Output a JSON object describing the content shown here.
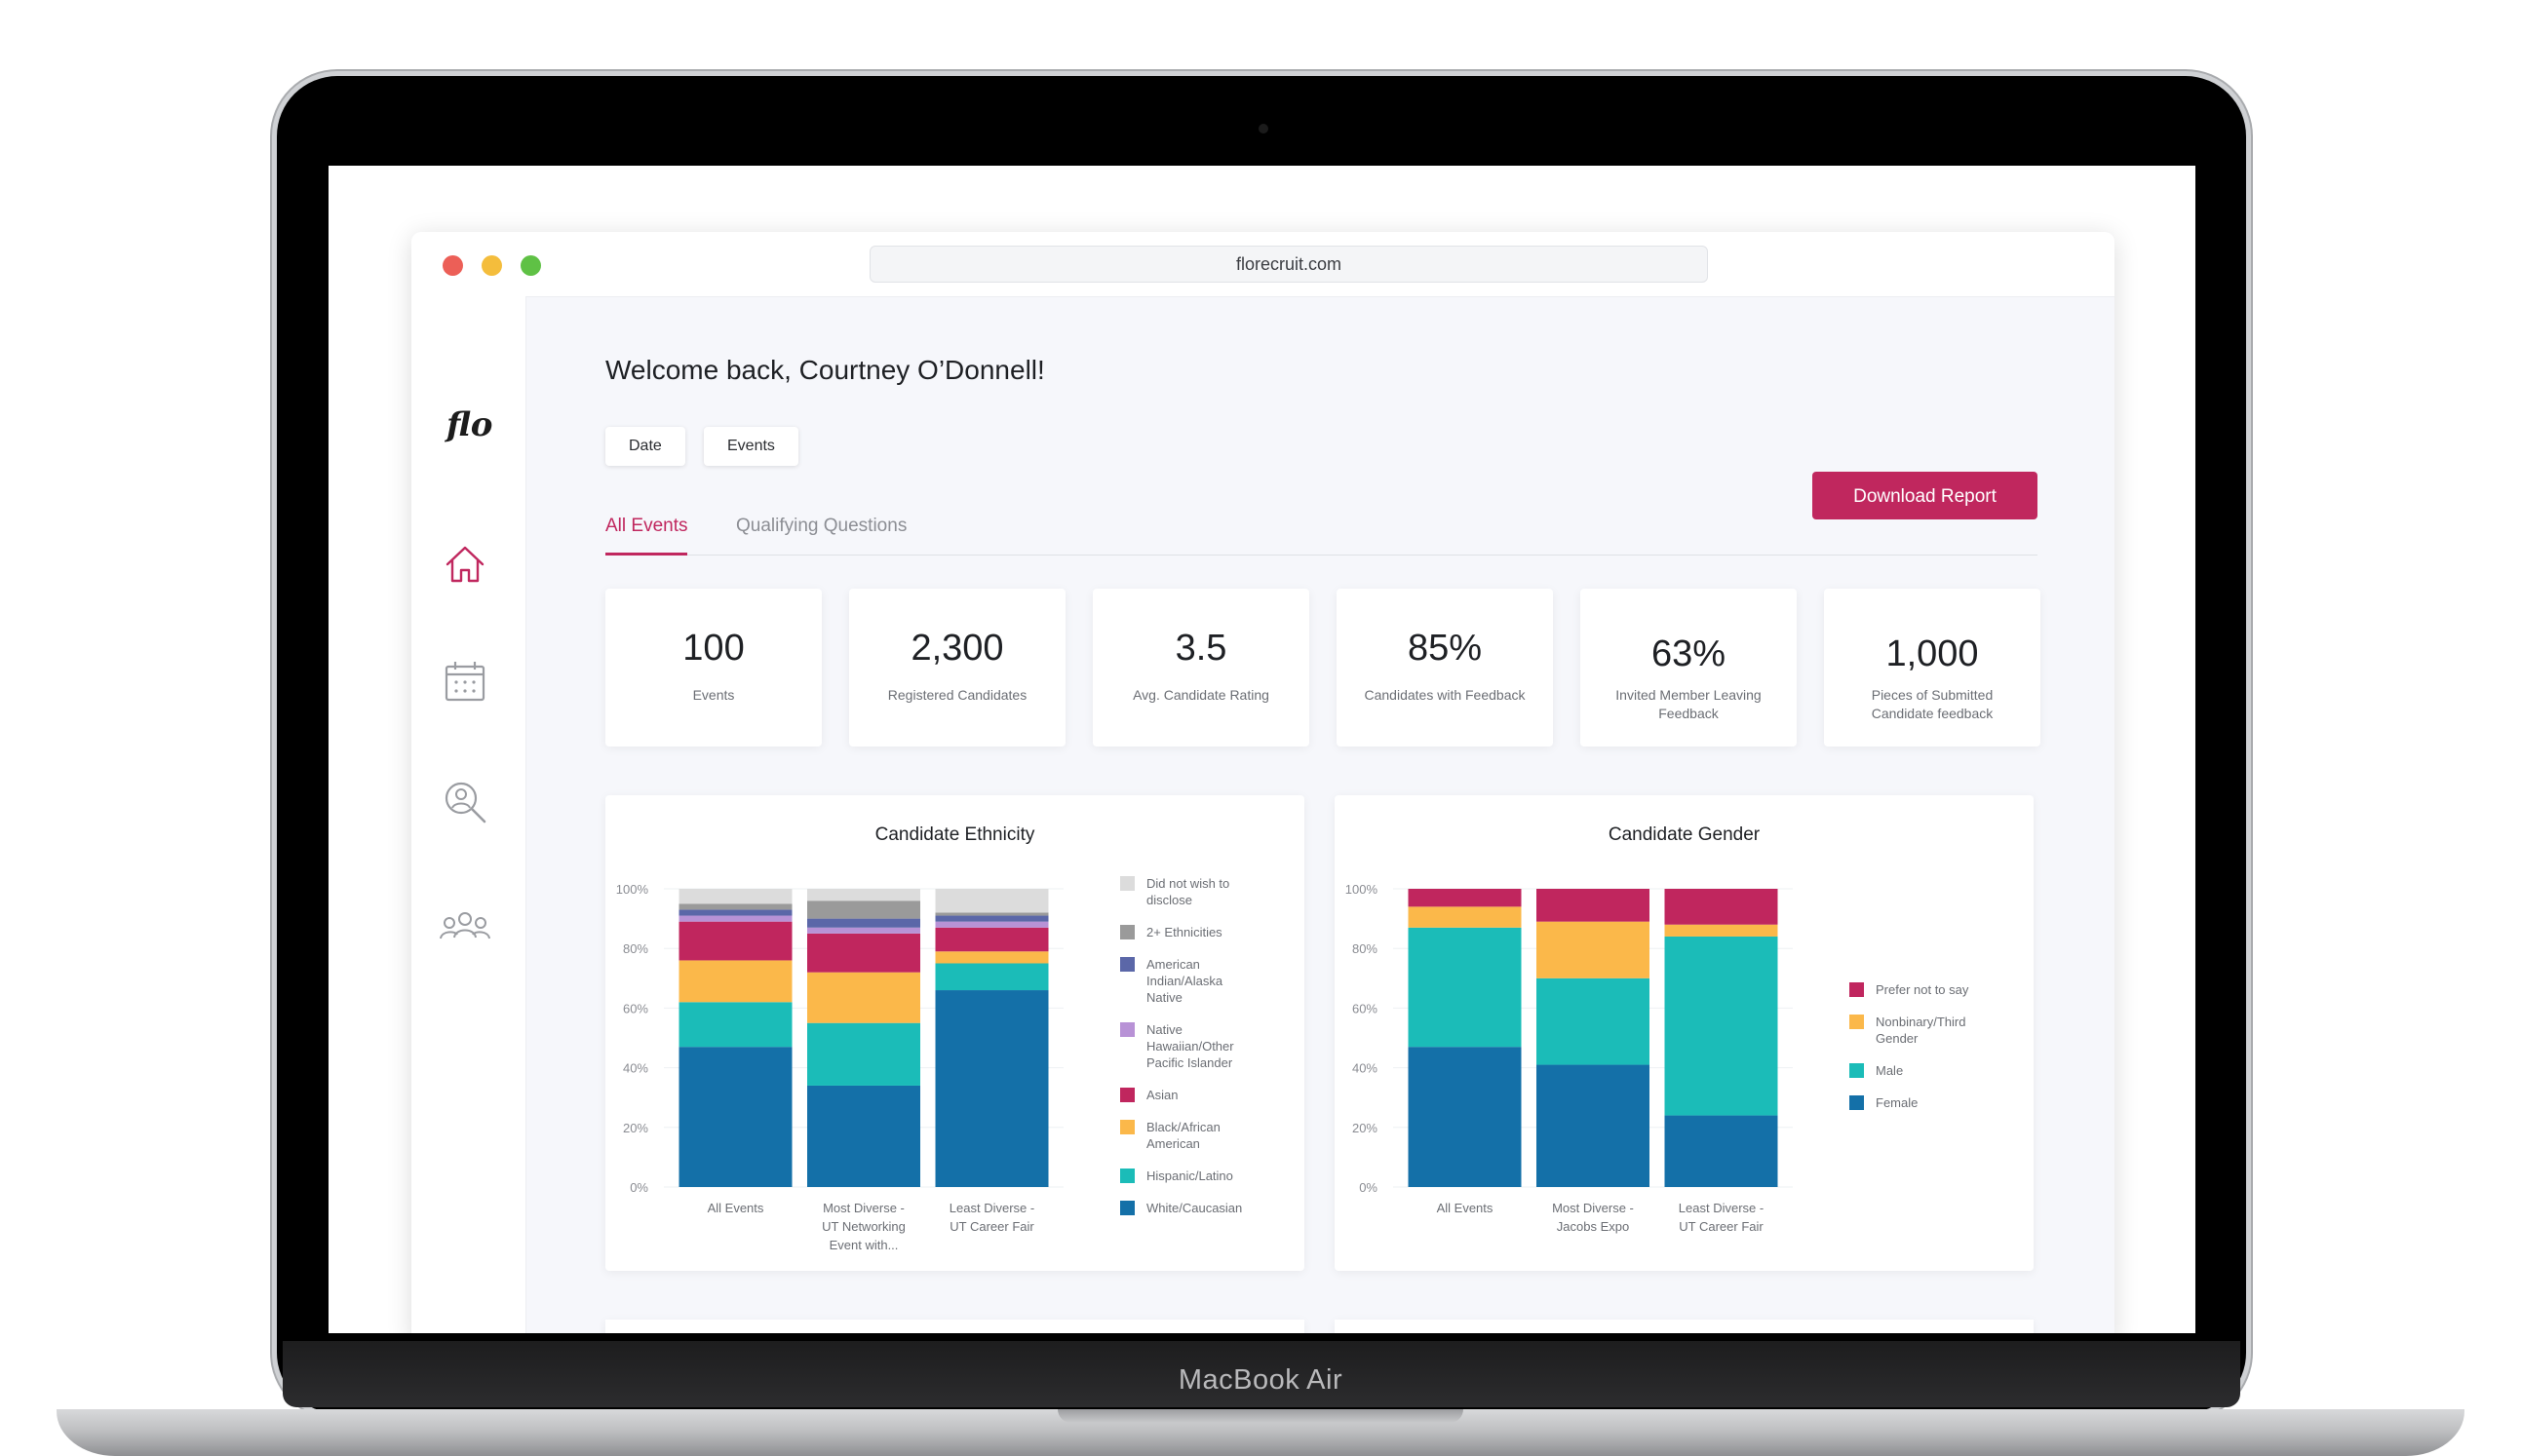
{
  "device": {
    "label": "MacBook Air"
  },
  "browser": {
    "url": "florecruit.com"
  },
  "sidebar": {
    "logo": "flo",
    "items": [
      {
        "icon": "home-icon",
        "active": true
      },
      {
        "icon": "calendar-icon",
        "active": false
      },
      {
        "icon": "candidate-search-icon",
        "active": false
      },
      {
        "icon": "team-icon",
        "active": false
      }
    ]
  },
  "header": {
    "welcome": "Welcome back, Courtney O’Donnell!",
    "filters": {
      "date": "Date",
      "events": "Events"
    },
    "download_label": "Download Report"
  },
  "tabs": [
    {
      "label": "All Events",
      "active": true
    },
    {
      "label": "Qualifying Questions",
      "active": false
    }
  ],
  "stats": [
    {
      "value": "100",
      "label": "Events"
    },
    {
      "value": "2,300",
      "label": "Registered Candidates"
    },
    {
      "value": "3.5",
      "label": "Avg. Candidate Rating"
    },
    {
      "value": "85%",
      "label": "Candidates with Feedback"
    },
    {
      "value": "63%",
      "label": "Invited Member Leaving Feedback"
    },
    {
      "value": "1,000",
      "label": "Pieces of Submitted Candidate feedback"
    }
  ],
  "colors": {
    "accent": "#c0275e",
    "did_not_wish": "#dcdcdc",
    "two_plus": "#9a9a9a",
    "american_indian": "#5b67a8",
    "pacific_islander": "#b892d6",
    "asian": "#c0265e",
    "black": "#fbb84a",
    "hispanic": "#1bbcb8",
    "white": "#1470a8"
  },
  "chart_data": [
    {
      "type": "bar",
      "stacked": true,
      "title": "Candidate Ethnicity",
      "categories": [
        "All Events",
        "Most Diverse - UT Networking Event with...",
        "Least Diverse - UT Career Fair"
      ],
      "ylim": [
        0,
        100
      ],
      "y_ticks": [
        "0%",
        "20%",
        "40%",
        "60%",
        "80%",
        "100%"
      ],
      "legend_position": "right",
      "series": [
        {
          "name": "White/Caucasian",
          "color": "#1470a8",
          "values": [
            47,
            34,
            66
          ]
        },
        {
          "name": "Hispanic/Latino",
          "color": "#1bbcb8",
          "values": [
            15,
            21,
            9
          ]
        },
        {
          "name": "Black/African American",
          "color": "#fbb84a",
          "values": [
            14,
            17,
            4
          ]
        },
        {
          "name": "Asian",
          "color": "#c0265e",
          "values": [
            13,
            13,
            8
          ]
        },
        {
          "name": "Native Hawaiian/Other Pacific Islander",
          "color": "#b892d6",
          "values": [
            2,
            2,
            2
          ]
        },
        {
          "name": "American Indian/Alaska Native",
          "color": "#5b67a8",
          "values": [
            2,
            3,
            2
          ]
        },
        {
          "name": "2+ Ethnicities",
          "color": "#9a9a9a",
          "values": [
            2,
            6,
            1
          ]
        },
        {
          "name": "Did not wish to disclose",
          "color": "#dcdcdc",
          "values": [
            5,
            4,
            8
          ]
        }
      ]
    },
    {
      "type": "bar",
      "stacked": true,
      "title": "Candidate Gender",
      "categories": [
        "All Events",
        "Most Diverse - Jacobs Expo",
        "Least Diverse - UT Career Fair"
      ],
      "ylim": [
        0,
        100
      ],
      "y_ticks": [
        "0%",
        "20%",
        "40%",
        "60%",
        "80%",
        "100%"
      ],
      "legend_position": "right",
      "series": [
        {
          "name": "Female",
          "color": "#1470a8",
          "values": [
            47,
            41,
            24
          ]
        },
        {
          "name": "Male",
          "color": "#1bbcb8",
          "values": [
            40,
            29,
            60
          ]
        },
        {
          "name": "Nonbinary/Third Gender",
          "color": "#fbb84a",
          "values": [
            7,
            19,
            4
          ]
        },
        {
          "name": "Prefer not to say",
          "color": "#c0265e",
          "values": [
            6,
            11,
            12
          ]
        }
      ]
    }
  ]
}
